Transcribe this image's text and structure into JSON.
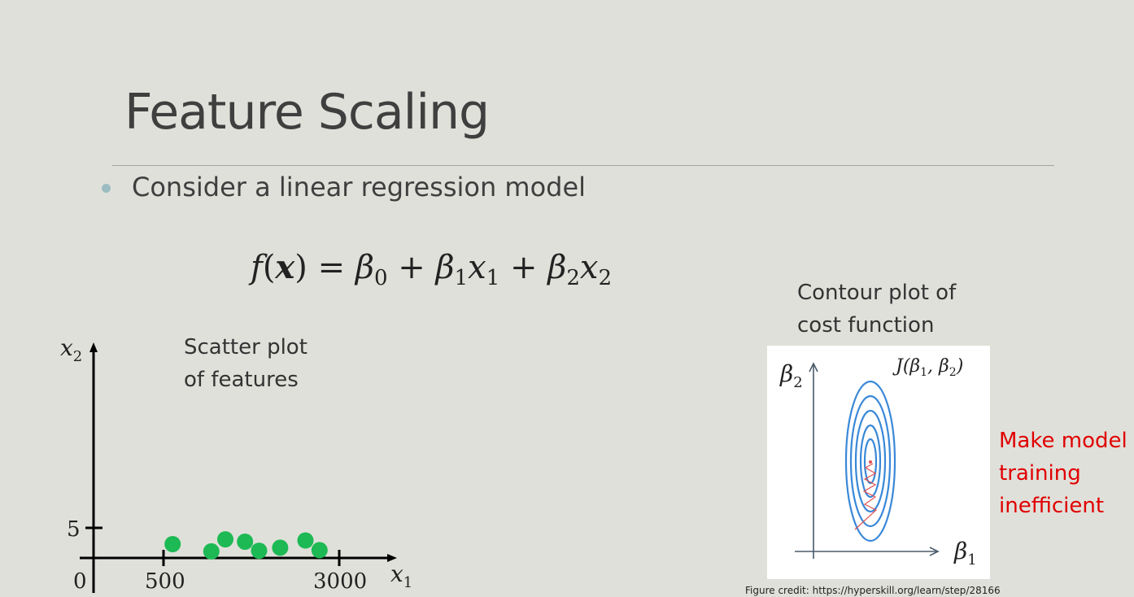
{
  "slide": {
    "title": "Feature Scaling",
    "bullet": "Consider a linear regression model",
    "equation": {
      "f": "f",
      "x_bold": "x",
      "beta": "β",
      "x": "x",
      "plus": "+",
      "equals": "=",
      "paren_open": "(",
      "paren_close": ")",
      "sub0": "0",
      "sub1": "1",
      "sub2": "2"
    },
    "contour_caption": [
      "Contour plot of",
      "cost function"
    ],
    "scatter_caption": [
      "Scatter plot",
      "of features"
    ],
    "red_note": [
      "Make model",
      "training",
      "inefficient"
    ],
    "credit": "Figure credit: https://hyperskill.org/learn/step/28166"
  },
  "scatter": {
    "y_axis_label": "x2",
    "x_axis_label": "x1",
    "origin_label": "0",
    "y_tick_label": "5",
    "x_tick_labels": [
      "500",
      "3000"
    ],
    "point_color": "#1db954",
    "points": [
      {
        "x1": 630,
        "x2": 2.3
      },
      {
        "x1": 1180,
        "x2": 1.1
      },
      {
        "x1": 1380,
        "x2": 3.1
      },
      {
        "x1": 1660,
        "x2": 2.7
      },
      {
        "x1": 1860,
        "x2": 1.2
      },
      {
        "x1": 2160,
        "x2": 1.7
      },
      {
        "x1": 2520,
        "x2": 2.9
      },
      {
        "x1": 2720,
        "x2": 1.3
      }
    ]
  },
  "contour": {
    "function_label": "J(β1, β2)",
    "y_axis_label": "β2",
    "x_axis_label": "β1",
    "line_color": "#3a88d8",
    "path_color": "#e05050"
  }
}
